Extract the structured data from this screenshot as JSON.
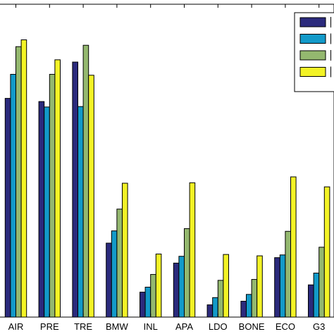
{
  "chart_data": {
    "type": "bar",
    "title": "",
    "xlabel": "",
    "ylabel": "",
    "ylim": [
      0,
      1
    ],
    "grid": false,
    "legend_position": "top-right",
    "categories": [
      "AIR",
      "PRE",
      "TRE",
      "BMW",
      "INL",
      "APA",
      "LDO",
      "BONE",
      "ECO",
      "G3"
    ],
    "series": [
      {
        "values": [
          0.482,
          0.475,
          0.562,
          0.163,
          0.055,
          0.119,
          0.027,
          0.035,
          0.131,
          0.071
        ]
      },
      {
        "values": [
          0.535,
          0.463,
          0.464,
          0.19,
          0.066,
          0.134,
          0.043,
          0.05,
          0.137,
          0.097
        ]
      },
      {
        "values": [
          0.596,
          0.535,
          0.599,
          0.238,
          0.094,
          0.195,
          0.081,
          0.083,
          0.189,
          0.154
        ]
      },
      {
        "values": [
          0.611,
          0.567,
          0.533,
          0.295,
          0.139,
          0.296,
          0.138,
          0.135,
          0.309,
          0.287
        ]
      }
    ],
    "colors": [
      "#2b2a7c",
      "#139ac9",
      "#94b86f",
      "#f3f326"
    ]
  }
}
